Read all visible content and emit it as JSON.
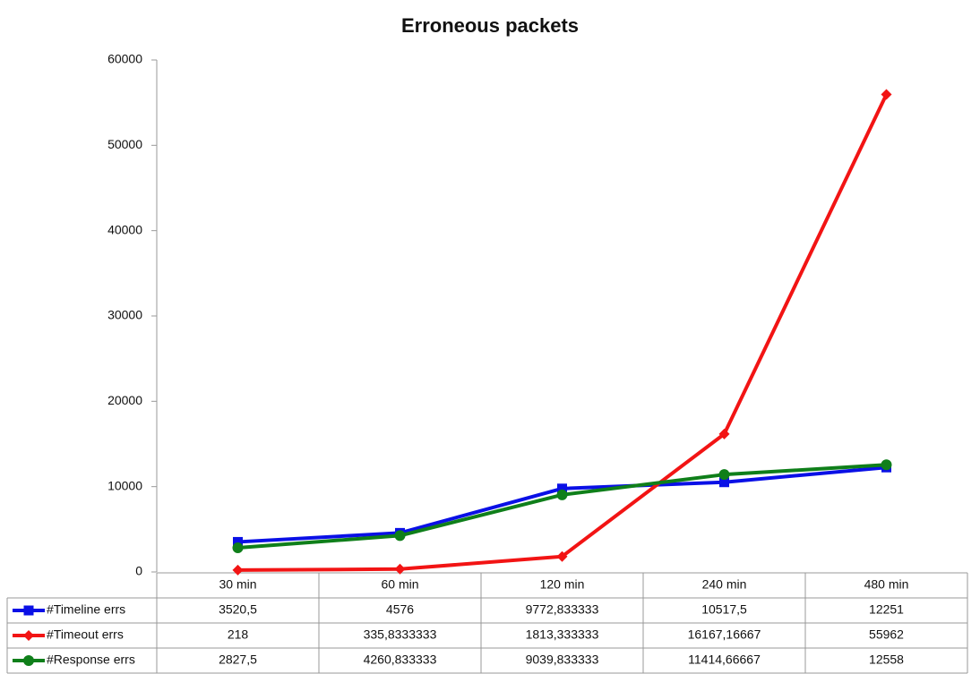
{
  "chart_data": {
    "type": "line",
    "title": "Erroneous packets",
    "categories": [
      "30 min",
      "60 min",
      "120 min",
      "240 min",
      "480 min"
    ],
    "ylim": [
      0,
      60000
    ],
    "yticks": [
      0,
      10000,
      20000,
      30000,
      40000,
      50000,
      60000
    ],
    "series": [
      {
        "name": "#Timeline errs",
        "color": "#0a10e6",
        "marker": "square",
        "values": [
          3520.5,
          4576,
          9772.833333,
          10517.5,
          12251
        ],
        "value_labels": [
          "3520,5",
          "4576",
          "9772,833333",
          "10517,5",
          "12251"
        ]
      },
      {
        "name": "#Timeout errs",
        "color": "#f21414",
        "marker": "diamond",
        "values": [
          218,
          335.8333333,
          1813.333333,
          16167.16667,
          55962
        ],
        "value_labels": [
          "218",
          "335,8333333",
          "1813,333333",
          "16167,16667",
          "55962"
        ]
      },
      {
        "name": "#Response errs",
        "color": "#0f7f1a",
        "marker": "circle",
        "values": [
          2827.5,
          4260.833333,
          9039.833333,
          11414.66667,
          12558
        ],
        "value_labels": [
          "2827,5",
          "4260,833333",
          "9039,833333",
          "11414,66667",
          "12558"
        ]
      }
    ]
  }
}
